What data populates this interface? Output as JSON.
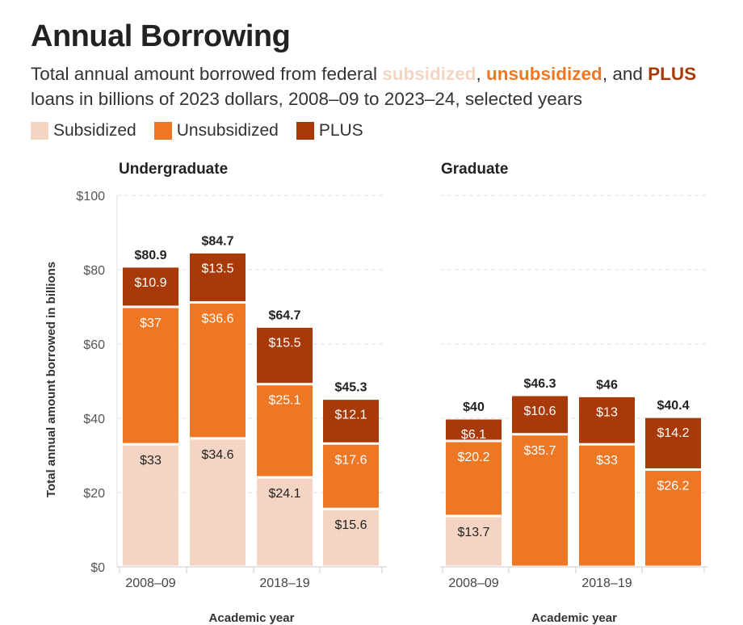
{
  "title": "Annual Borrowing",
  "subtitle": {
    "part1": "Total annual amount borrowed from federal ",
    "kw_subsidized": "subsidized",
    "part2": ", ",
    "kw_unsubsidized": "unsubsidized",
    "part3": ", and ",
    "kw_plus": "PLUS",
    "part4": " loans in billions of 2023 dollars, 2008–09 to 2023–24, selected years"
  },
  "colors": {
    "subsidized": "#f4d5c4",
    "unsubsidized": "#ee7724",
    "plus": "#a83a0a",
    "grid": "#dddddd",
    "axis_text": "#555555"
  },
  "chart_data": {
    "type": "bar",
    "stacked": true,
    "legend": [
      "Subsidized",
      "Unsubsidized",
      "PLUS"
    ],
    "ylabel": "Total annual amount borrowed in billions",
    "xlabel": "Academic year",
    "ylim": [
      0,
      100
    ],
    "yticks": [
      "$0",
      "$20",
      "$40",
      "$60",
      "$80",
      "$100"
    ],
    "yticks_values": [
      0,
      20,
      40,
      60,
      80,
      100
    ],
    "panels": [
      {
        "title": "Undergraduate",
        "xticks": [
          "2008–09",
          "2018–19"
        ],
        "xtick_bar_index": [
          0,
          2
        ],
        "bars": [
          {
            "subsidized": 33,
            "unsubsidized": 37,
            "plus": 10.9,
            "total": 80.9,
            "labels": {
              "subsidized": "$33",
              "unsubsidized": "$37",
              "plus": "$10.9",
              "total": "$80.9"
            }
          },
          {
            "subsidized": 34.6,
            "unsubsidized": 36.6,
            "plus": 13.5,
            "total": 84.7,
            "labels": {
              "subsidized": "$34.6",
              "unsubsidized": "$36.6",
              "plus": "$13.5",
              "total": "$84.7"
            }
          },
          {
            "subsidized": 24.1,
            "unsubsidized": 25.1,
            "plus": 15.5,
            "total": 64.7,
            "labels": {
              "subsidized": "$24.1",
              "unsubsidized": "$25.1",
              "plus": "$15.5",
              "total": "$64.7"
            }
          },
          {
            "subsidized": 15.6,
            "unsubsidized": 17.6,
            "plus": 12.1,
            "total": 45.3,
            "labels": {
              "subsidized": "$15.6",
              "unsubsidized": "$17.6",
              "plus": "$12.1",
              "total": "$45.3"
            }
          }
        ]
      },
      {
        "title": "Graduate",
        "xticks": [
          "2008–09",
          "2018–19"
        ],
        "xtick_bar_index": [
          0,
          2
        ],
        "bars": [
          {
            "subsidized": 13.7,
            "unsubsidized": 20.2,
            "plus": 6.1,
            "total": 40,
            "labels": {
              "subsidized": "$13.7",
              "unsubsidized": "$20.2",
              "plus": "$6.1",
              "total": "$40"
            }
          },
          {
            "subsidized": 0,
            "unsubsidized": 35.7,
            "plus": 10.6,
            "total": 46.3,
            "labels": {
              "subsidized": "",
              "unsubsidized": "$35.7",
              "plus": "$10.6",
              "total": "$46.3"
            }
          },
          {
            "subsidized": 0,
            "unsubsidized": 33,
            "plus": 13,
            "total": 46,
            "labels": {
              "subsidized": "",
              "unsubsidized": "$33",
              "plus": "$13",
              "total": "$46"
            }
          },
          {
            "subsidized": 0,
            "unsubsidized": 26.2,
            "plus": 14.2,
            "total": 40.4,
            "labels": {
              "subsidized": "",
              "unsubsidized": "$26.2",
              "plus": "$14.2",
              "total": "$40.4"
            }
          }
        ]
      }
    ]
  }
}
